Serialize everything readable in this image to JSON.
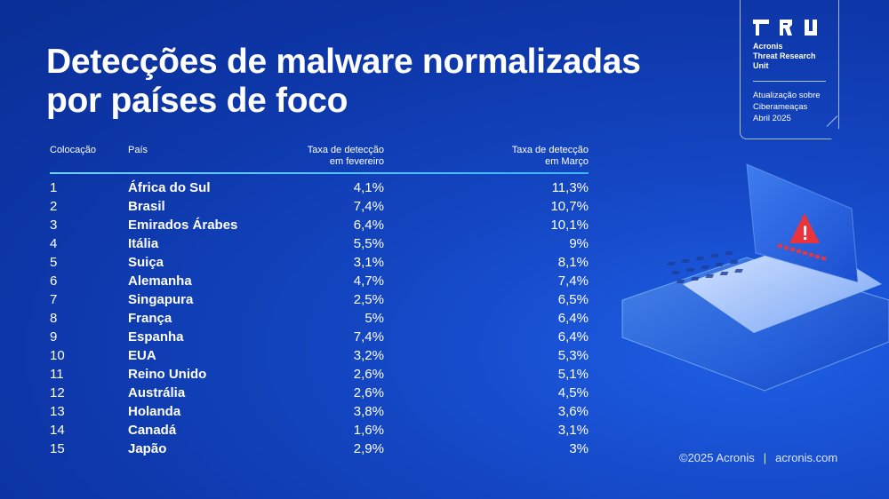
{
  "title": {
    "line1": "Detecções de malware normalizadas",
    "line2": "por países de foco"
  },
  "badge": {
    "logo_icon": "tru-logo-icon",
    "org_line1": "Acronis",
    "org_line2": "Threat Research",
    "org_line3": "Unit",
    "sub_line1": "Atualização sobre",
    "sub_line2": "Ciberameaças",
    "sub_line3": "Abril 2025"
  },
  "table": {
    "headers": {
      "rank": "Colocação",
      "country": "País",
      "feb_line1": "Taxa de detecção",
      "feb_line2": "em fevereiro",
      "mar_line1": "Taxa de detecção",
      "mar_line2": "em Março"
    },
    "rows": [
      {
        "rank": "1",
        "country": "África do Sul",
        "feb": "4,1%",
        "mar": "11,3%"
      },
      {
        "rank": "2",
        "country": "Brasil",
        "feb": "7,4%",
        "mar": "10,7%"
      },
      {
        "rank": "3",
        "country": "Emirados Árabes",
        "feb": "6,4%",
        "mar": "10,1%"
      },
      {
        "rank": "4",
        "country": "Itália",
        "feb": "5,5%",
        "mar": "9%"
      },
      {
        "rank": "5",
        "country": "Suiça",
        "feb": "3,1%",
        "mar": "8,1%"
      },
      {
        "rank": "6",
        "country": "Alemanha",
        "feb": "4,7%",
        "mar": "7,4%"
      },
      {
        "rank": "7",
        "country": "Singapura",
        "feb": "2,5%",
        "mar": "6,5%"
      },
      {
        "rank": "8",
        "country": "França",
        "feb": "5%",
        "mar": "6,4%"
      },
      {
        "rank": "9",
        "country": "Espanha",
        "feb": "7,4%",
        "mar": "6,4%"
      },
      {
        "rank": "10",
        "country": "EUA",
        "feb": "3,2%",
        "mar": "5,3%"
      },
      {
        "rank": "11",
        "country": "Reino Unido",
        "feb": "2,6%",
        "mar": "5,1%"
      },
      {
        "rank": "12",
        "country": "Austrália",
        "feb": "2,6%",
        "mar": "4,5%"
      },
      {
        "rank": "13",
        "country": "Holanda",
        "feb": "3,8%",
        "mar": "3,6%"
      },
      {
        "rank": "14",
        "country": "Canadá",
        "feb": "1,6%",
        "mar": "3,1%"
      },
      {
        "rank": "15",
        "country": "Japão",
        "feb": "2,9%",
        "mar": "3%"
      }
    ]
  },
  "illustration": {
    "icon": "laptop-warning-icon",
    "warning_symbol": "!"
  },
  "footer": {
    "copyright": "©2025 Acronis",
    "separator": "|",
    "site": "acronis.com"
  },
  "colors": {
    "background": "#1447c4",
    "accent_rule": "#3fb3ff",
    "warning": "#e8343c"
  }
}
